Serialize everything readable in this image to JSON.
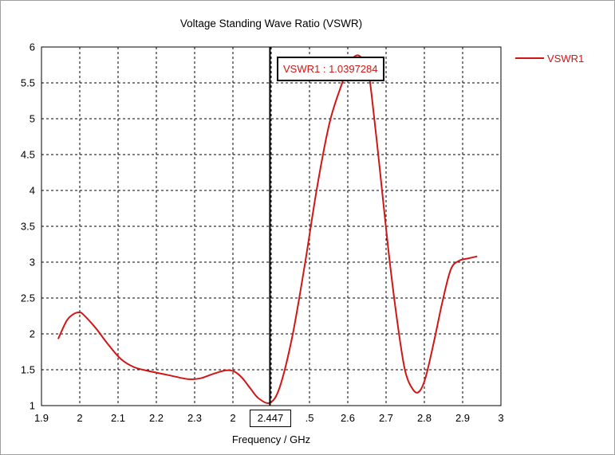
{
  "chart_data": {
    "type": "line",
    "title": "Voltage Standing Wave Ratio (VSWR)",
    "xlabel": "Frequency / GHz",
    "ylabel": "",
    "xlim": [
      1.9,
      3.0
    ],
    "ylim": [
      1,
      6
    ],
    "x_ticks": [
      "1.9",
      "2",
      "2.1",
      "2.2",
      "2.3",
      "2",
      "2.447",
      ".5",
      "2.6",
      "2.7",
      "2.8",
      "2.9",
      "3"
    ],
    "y_ticks": [
      "1",
      "1.5",
      "2",
      "2.5",
      "3",
      "3.5",
      "4",
      "4.5",
      "5",
      "5.5",
      "6"
    ],
    "grid": true,
    "legend_placement": "top-right outside",
    "series": [
      {
        "name": "VSWR1",
        "color": "#d01616",
        "x": [
          1.94,
          1.96,
          1.975,
          1.99,
          2.0,
          2.03,
          2.06,
          2.09,
          2.12,
          2.15,
          2.2,
          2.25,
          2.28,
          2.31,
          2.34,
          2.36,
          2.38,
          2.4,
          2.42,
          2.447,
          2.47,
          2.5,
          2.53,
          2.56,
          2.59,
          2.62,
          2.64,
          2.66,
          2.68,
          2.69,
          2.71,
          2.73,
          2.75,
          2.77,
          2.79,
          2.805,
          2.82,
          2.84,
          2.86,
          2.88,
          2.9,
          2.92,
          2.943
        ],
        "y": [
          1.93,
          2.18,
          2.27,
          2.3,
          2.27,
          2.08,
          1.85,
          1.65,
          1.54,
          1.49,
          1.43,
          1.37,
          1.38,
          1.44,
          1.49,
          1.48,
          1.39,
          1.24,
          1.1,
          1.04,
          1.25,
          1.95,
          2.95,
          4.05,
          4.95,
          5.5,
          5.8,
          5.88,
          5.7,
          5.35,
          4.3,
          3.2,
          2.25,
          1.5,
          1.22,
          1.2,
          1.4,
          1.9,
          2.45,
          2.9,
          3.02,
          3.05,
          3.08
        ]
      }
    ],
    "marker": {
      "x": 2.447,
      "y": 1.0397284,
      "x_label": "2.447",
      "label": "VSWR1 : 1.0397284"
    }
  }
}
